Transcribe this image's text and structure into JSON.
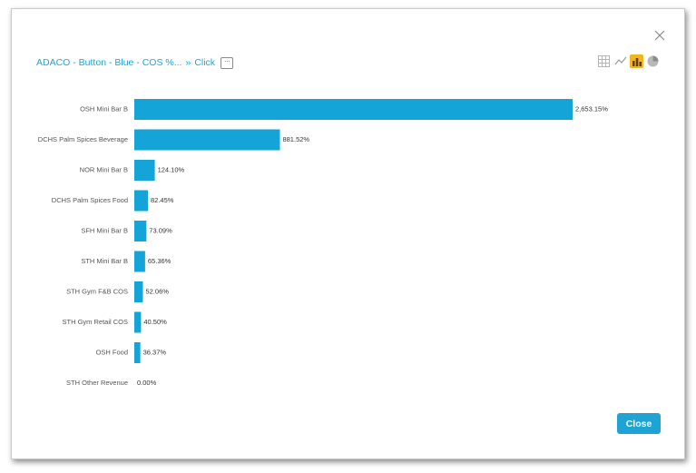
{
  "dialog": {
    "breadcrumb": {
      "report_link": "ADACO - Button - Blue - COS %...",
      "separator": "»",
      "action": "Click",
      "more_glyph": "···"
    },
    "view_icons": [
      {
        "name": "table-view-icon",
        "active": false
      },
      {
        "name": "line-chart-view-icon",
        "active": false
      },
      {
        "name": "bar-chart-view-icon",
        "active": true
      },
      {
        "name": "pie-chart-view-icon",
        "active": false
      }
    ],
    "close_button_label": "Close"
  },
  "colors": {
    "bar": "#15a4d7",
    "accent": "#1fa3d5",
    "active_view": "#f2b51e"
  },
  "chart_data": {
    "type": "bar",
    "orientation": "horizontal",
    "categories": [
      "OSH Mini Bar B",
      "DCHS Palm Spices Beverage",
      "NOR Mini Bar B",
      "DCHS Palm Spices Food",
      "SFH Mini Bar B",
      "STH Mini Bar B",
      "STH Gym F&B COS",
      "STH Gym Retail COS",
      "OSH Food",
      "STH Other Revenue"
    ],
    "values": [
      2653.15,
      881.52,
      124.1,
      82.45,
      73.09,
      65.36,
      52.06,
      40.5,
      36.37,
      0.0
    ],
    "value_labels": [
      "2,653.15%",
      "881.52%",
      "124.10%",
      "82.45%",
      "73.09%",
      "65.36%",
      "52.06%",
      "40.50%",
      "36.37%",
      "0.00%"
    ],
    "xlim": [
      0,
      2653.15
    ],
    "grid": false,
    "legend": "none"
  }
}
